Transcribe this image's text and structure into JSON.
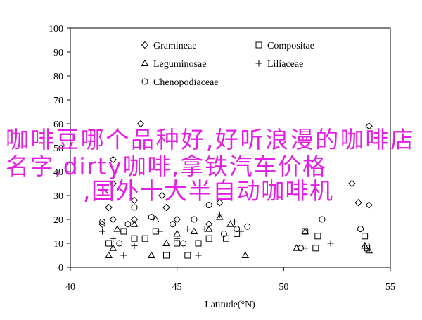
{
  "chart_data": {
    "type": "scatter",
    "xlabel": "Latitude(°N)",
    "xlim": [
      40,
      55
    ],
    "xticks": [
      40,
      45,
      50,
      55
    ],
    "ylim": [
      0,
      100
    ],
    "yticks": [
      0,
      10,
      20,
      30,
      40,
      50,
      60,
      70,
      80,
      90,
      100
    ],
    "legend": "top",
    "series": [
      {
        "name": "Gramineae",
        "marker": "diamond",
        "color": "#000000",
        "x": [
          43.3,
          42,
          42,
          43,
          44.3,
          41.8,
          42,
          43,
          45,
          46.5,
          47,
          53.2,
          53.5,
          54,
          54,
          41.5,
          44.5
        ],
        "values": [
          60,
          45,
          35,
          28,
          30,
          25,
          20,
          20,
          20,
          18,
          27,
          35,
          27,
          59,
          26,
          18,
          25
        ]
      },
      {
        "name": "Compositae",
        "marker": "square",
        "color": "#000000",
        "x": [
          41.8,
          42.5,
          43,
          43.5,
          44,
          45,
          46,
          46.5,
          47.3,
          47.8,
          51,
          51.5,
          51.6,
          53.8,
          53.9,
          44.5,
          45.5
        ],
        "values": [
          10,
          15,
          12,
          12,
          15,
          10,
          10,
          12,
          12,
          14,
          15,
          8,
          13,
          13,
          8,
          5,
          5
        ]
      },
      {
        "name": "Leguminosae",
        "marker": "triangle",
        "color": "#000000",
        "x": [
          41.8,
          42,
          42.2,
          43,
          44,
          44.5,
          45,
          45.8,
          46.5,
          47,
          47.5,
          48.2,
          50.6,
          51,
          53.8,
          54,
          43.8
        ],
        "values": [
          5,
          8,
          16,
          18,
          20,
          10,
          14,
          15,
          16,
          21,
          18,
          5,
          8,
          15,
          9,
          7,
          5
        ]
      },
      {
        "name": "Liliaceae",
        "marker": "plus",
        "color": "#000000",
        "x": [
          41.5,
          42,
          43,
          44.2,
          45,
          45.5,
          46.3,
          47,
          47.7,
          48,
          51,
          52.2,
          53.8,
          42.5,
          46
        ],
        "values": [
          15,
          12,
          9,
          15,
          12,
          16,
          16,
          22,
          19,
          15,
          8,
          10,
          8,
          5,
          5
        ]
      },
      {
        "name": "Chenopodiaceae",
        "marker": "circle",
        "color": "#000000",
        "x": [
          41.5,
          42.3,
          42.7,
          43,
          43.8,
          44.8,
          45.3,
          45.8,
          46.5,
          47.2,
          47.8,
          48.3,
          50.8,
          51.8,
          53.6,
          53.9
        ],
        "values": [
          19,
          10,
          18,
          25,
          21,
          18,
          10,
          20,
          26,
          14,
          16,
          17,
          8,
          20,
          16,
          9
        ]
      }
    ],
    "annotations": [
      "咖啡豆哪个品种好,好听浪漫的咖啡店",
      "名字,dirty咖啡,拿铁汽车价格",
      ",国外十大半自动咖啡机"
    ],
    "annotation_color": "#e21fe2"
  }
}
